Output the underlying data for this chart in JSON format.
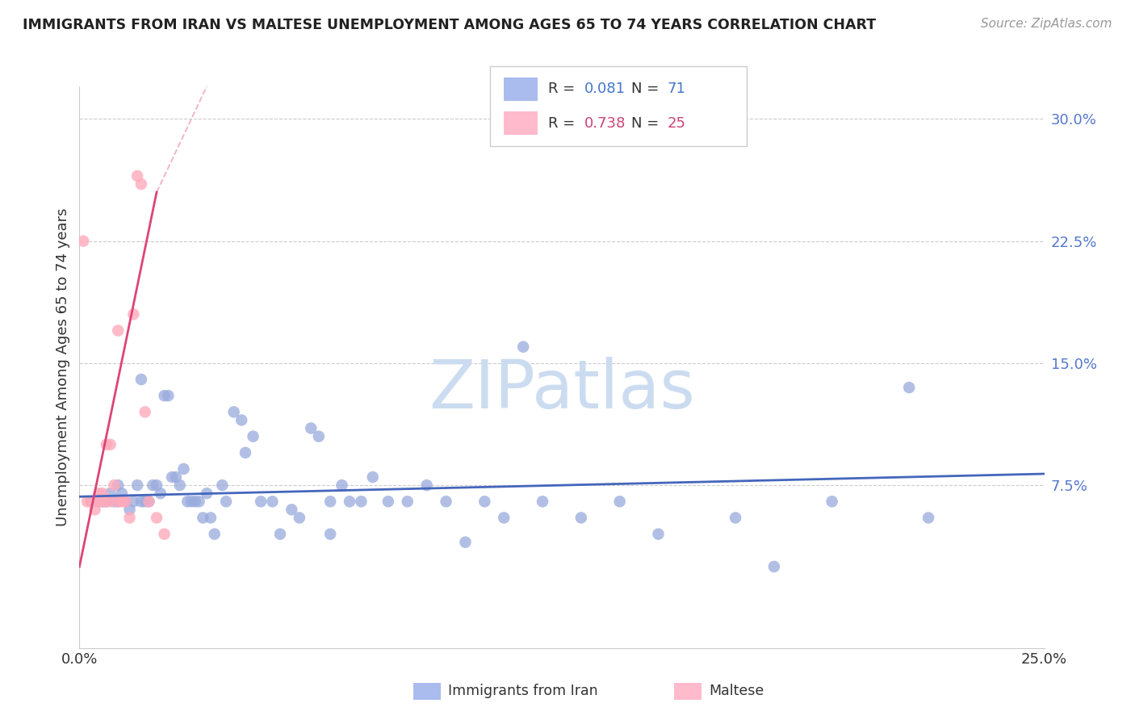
{
  "title": "IMMIGRANTS FROM IRAN VS MALTESE UNEMPLOYMENT AMONG AGES 65 TO 74 YEARS CORRELATION CHART",
  "source": "Source: ZipAtlas.com",
  "ylabel": "Unemployment Among Ages 65 to 74 years",
  "xrange": [
    0.0,
    0.25
  ],
  "yrange": [
    -0.025,
    0.32
  ],
  "blue_R": "0.081",
  "blue_N": "71",
  "pink_R": "0.738",
  "pink_N": "25",
  "blue_color": "#aabbee",
  "pink_color": "#ffbbcc",
  "blue_scatter_color": "#99aadd",
  "pink_scatter_color": "#ffaabb",
  "blue_line_color": "#4466bb",
  "pink_line_color": "#dd4477",
  "r_n_color_blue": "#4477cc",
  "r_n_color_pink": "#cc4477",
  "legend_label_blue": "Immigrants from Iran",
  "legend_label_pink": "Maltese",
  "watermark": "ZIPatlas",
  "blue_scatter_x": [
    0.003,
    0.004,
    0.005,
    0.006,
    0.007,
    0.008,
    0.009,
    0.01,
    0.01,
    0.011,
    0.012,
    0.013,
    0.014,
    0.015,
    0.016,
    0.016,
    0.017,
    0.018,
    0.019,
    0.02,
    0.021,
    0.022,
    0.023,
    0.024,
    0.025,
    0.026,
    0.027,
    0.028,
    0.029,
    0.03,
    0.031,
    0.032,
    0.033,
    0.034,
    0.035,
    0.037,
    0.038,
    0.04,
    0.042,
    0.043,
    0.045,
    0.047,
    0.05,
    0.052,
    0.055,
    0.057,
    0.06,
    0.062,
    0.065,
    0.068,
    0.07,
    0.073,
    0.076,
    0.08,
    0.085,
    0.09,
    0.095,
    0.1,
    0.105,
    0.11,
    0.115,
    0.13,
    0.14,
    0.15,
    0.17,
    0.18,
    0.195,
    0.215,
    0.22,
    0.12,
    0.065
  ],
  "blue_scatter_y": [
    0.065,
    0.065,
    0.065,
    0.065,
    0.065,
    0.07,
    0.065,
    0.065,
    0.075,
    0.07,
    0.065,
    0.06,
    0.065,
    0.075,
    0.065,
    0.14,
    0.065,
    0.065,
    0.075,
    0.075,
    0.07,
    0.13,
    0.13,
    0.08,
    0.08,
    0.075,
    0.085,
    0.065,
    0.065,
    0.065,
    0.065,
    0.055,
    0.07,
    0.055,
    0.045,
    0.075,
    0.065,
    0.12,
    0.115,
    0.095,
    0.105,
    0.065,
    0.065,
    0.045,
    0.06,
    0.055,
    0.11,
    0.105,
    0.065,
    0.075,
    0.065,
    0.065,
    0.08,
    0.065,
    0.065,
    0.075,
    0.065,
    0.04,
    0.065,
    0.055,
    0.16,
    0.055,
    0.065,
    0.045,
    0.055,
    0.025,
    0.065,
    0.135,
    0.055,
    0.065,
    0.045
  ],
  "pink_scatter_x": [
    0.001,
    0.002,
    0.003,
    0.004,
    0.005,
    0.005,
    0.006,
    0.006,
    0.007,
    0.007,
    0.008,
    0.008,
    0.009,
    0.01,
    0.01,
    0.011,
    0.012,
    0.013,
    0.014,
    0.015,
    0.016,
    0.017,
    0.018,
    0.02,
    0.022
  ],
  "pink_scatter_y": [
    0.225,
    0.065,
    0.065,
    0.06,
    0.065,
    0.07,
    0.065,
    0.07,
    0.065,
    0.1,
    0.065,
    0.1,
    0.075,
    0.065,
    0.17,
    0.065,
    0.065,
    0.055,
    0.18,
    0.265,
    0.26,
    0.12,
    0.065,
    0.055,
    0.045
  ],
  "blue_trend_x0": 0.0,
  "blue_trend_x1": 0.25,
  "blue_trend_y0": 0.068,
  "blue_trend_y1": 0.082,
  "pink_trend_x0": 0.0,
  "pink_trend_x1": 0.02,
  "pink_trend_y0": 0.025,
  "pink_trend_y1": 0.255,
  "pink_trend_ext_x0": 0.02,
  "pink_trend_ext_x1": 0.033,
  "pink_trend_ext_y0": 0.255,
  "pink_trend_ext_y1": 0.32,
  "ytick_vals": [
    0.075,
    0.15,
    0.225,
    0.3
  ],
  "ytick_labels": [
    "7.5%",
    "15.0%",
    "22.5%",
    "30.0%"
  ],
  "xtick_vals": [
    0.0,
    0.25
  ],
  "xtick_labels": [
    "0.0%",
    "25.0%"
  ]
}
